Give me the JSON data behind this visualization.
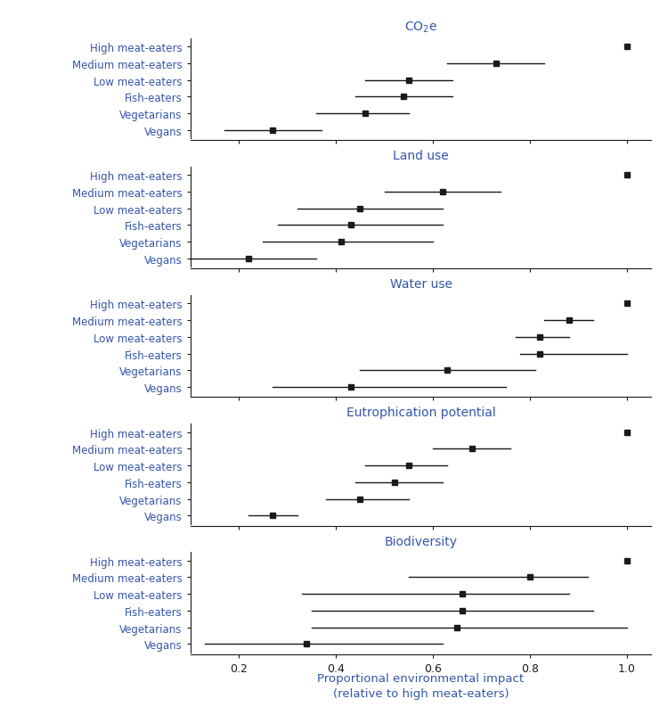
{
  "categories": [
    "High meat-eaters",
    "Medium meat-eaters",
    "Low meat-eaters",
    "Fish-eaters",
    "Vegetarians",
    "Vegans"
  ],
  "panels": [
    {
      "title": "CO$_2$e",
      "point": [
        1.0,
        0.73,
        0.55,
        0.54,
        0.46,
        0.27
      ],
      "lo": [
        1.0,
        0.63,
        0.46,
        0.44,
        0.36,
        0.17
      ],
      "hi": [
        1.0,
        0.83,
        0.64,
        0.64,
        0.55,
        0.37
      ]
    },
    {
      "title": "Land use",
      "point": [
        1.0,
        0.62,
        0.45,
        0.43,
        0.41,
        0.22
      ],
      "lo": [
        1.0,
        0.5,
        0.32,
        0.28,
        0.25,
        0.08
      ],
      "hi": [
        1.0,
        0.74,
        0.62,
        0.62,
        0.6,
        0.36
      ]
    },
    {
      "title": "Water use",
      "point": [
        1.0,
        0.88,
        0.82,
        0.82,
        0.63,
        0.43
      ],
      "lo": [
        1.0,
        0.83,
        0.77,
        0.78,
        0.45,
        0.27
      ],
      "hi": [
        1.0,
        0.93,
        0.88,
        1.0,
        0.81,
        0.75
      ]
    },
    {
      "title": "Eutrophication potential",
      "point": [
        1.0,
        0.68,
        0.55,
        0.52,
        0.45,
        0.27
      ],
      "lo": [
        1.0,
        0.6,
        0.46,
        0.44,
        0.38,
        0.22
      ],
      "hi": [
        1.0,
        0.76,
        0.63,
        0.62,
        0.55,
        0.32
      ]
    },
    {
      "title": "Biodiversity",
      "point": [
        1.0,
        0.8,
        0.66,
        0.66,
        0.65,
        0.34
      ],
      "lo": [
        1.0,
        0.55,
        0.33,
        0.35,
        0.35,
        0.13
      ],
      "hi": [
        1.0,
        0.92,
        0.88,
        0.93,
        1.0,
        0.62
      ]
    }
  ],
  "xlim": [
    0.1,
    1.05
  ],
  "xticks": [
    0.2,
    0.4,
    0.6,
    0.8,
    1.0
  ],
  "xlabel_line1": "Proportional environmental impact",
  "xlabel_line2": "(relative to high meat-eaters)",
  "marker_color": "#1a1a1a",
  "line_color": "#1a1a1a",
  "text_color": "#3355aa",
  "title_color": "#3355aa",
  "tick_label_color": "#1a1a1a",
  "axis_color": "#1a1a1a",
  "background_color": "#ffffff",
  "figsize": [
    7.5,
    8.03
  ],
  "dpi": 100
}
